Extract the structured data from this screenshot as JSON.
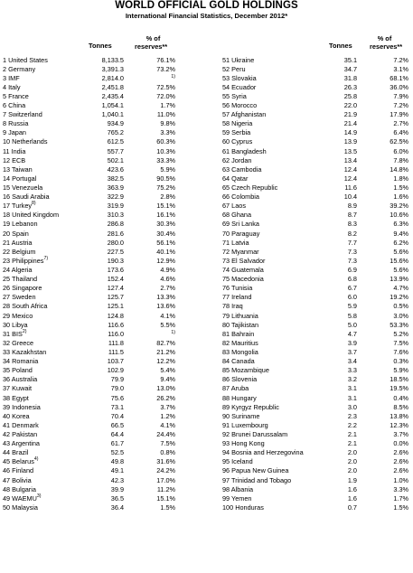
{
  "header": {
    "title": "WORLD OFFICIAL GOLD HOLDINGS",
    "subtitle": "International Financial Statistics, December 2012*",
    "tonnes_label": "Tonnes",
    "pct_label_line1": "% of",
    "pct_label_line2": "reserves**"
  },
  "left_rows": [
    {
      "rank": "1",
      "name": "United States",
      "fn": "",
      "tonnes": "8,133.5",
      "pct": "76.1%"
    },
    {
      "rank": "2",
      "name": "Germany",
      "fn": "",
      "tonnes": "3,391.3",
      "pct": "73.2%"
    },
    {
      "rank": "3",
      "name": "IMF",
      "fn": "",
      "tonnes": "2,814.0",
      "pct": "1)"
    },
    {
      "rank": "4",
      "name": "Italy",
      "fn": "",
      "tonnes": "2,451.8",
      "pct": "72.5%"
    },
    {
      "rank": "5",
      "name": "France",
      "fn": "",
      "tonnes": "2,435.4",
      "pct": "72.0%"
    },
    {
      "rank": "6",
      "name": "China",
      "fn": "",
      "tonnes": "1,054.1",
      "pct": "1.7%"
    },
    {
      "rank": "7",
      "name": "Switzerland",
      "fn": "",
      "tonnes": "1,040.1",
      "pct": "11.0%"
    },
    {
      "rank": "8",
      "name": "Russia",
      "fn": "",
      "tonnes": "934.9",
      "pct": "9.8%"
    },
    {
      "rank": "9",
      "name": "Japan",
      "fn": "",
      "tonnes": "765.2",
      "pct": "3.3%"
    },
    {
      "rank": "10",
      "name": "Netherlands",
      "fn": "",
      "tonnes": "612.5",
      "pct": "60.3%"
    },
    {
      "rank": "11",
      "name": "India",
      "fn": "",
      "tonnes": "557.7",
      "pct": "10.3%"
    },
    {
      "rank": "12",
      "name": "ECB",
      "fn": "",
      "tonnes": "502.1",
      "pct": "33.3%"
    },
    {
      "rank": "13",
      "name": "Taiwan",
      "fn": "",
      "tonnes": "423.6",
      "pct": "5.9%"
    },
    {
      "rank": "14",
      "name": "Portugal",
      "fn": "",
      "tonnes": "382.5",
      "pct": "90.5%"
    },
    {
      "rank": "15",
      "name": "Venezuela",
      "fn": "",
      "tonnes": "363.9",
      "pct": "75.2%"
    },
    {
      "rank": "16",
      "name": "Saudi Arabia",
      "fn": "",
      "tonnes": "322.9",
      "pct": "2.8%"
    },
    {
      "rank": "17",
      "name": "Turkey",
      "fn": "8)",
      "tonnes": "319.9",
      "pct": "15.1%"
    },
    {
      "rank": "18",
      "name": "United Kingdom",
      "fn": "",
      "tonnes": "310.3",
      "pct": "16.1%"
    },
    {
      "rank": "19",
      "name": "Lebanon",
      "fn": "",
      "tonnes": "286.8",
      "pct": "30.3%"
    },
    {
      "rank": "20",
      "name": "Spain",
      "fn": "",
      "tonnes": "281.6",
      "pct": "30.4%"
    },
    {
      "rank": "21",
      "name": "Austria",
      "fn": "",
      "tonnes": "280.0",
      "pct": "56.1%"
    },
    {
      "rank": "22",
      "name": "Belgium",
      "fn": "",
      "tonnes": "227.5",
      "pct": "40.1%"
    },
    {
      "rank": "23",
      "name": "Philippines",
      "fn": "7)",
      "tonnes": "190.3",
      "pct": "12.9%"
    },
    {
      "rank": "24",
      "name": "Algeria",
      "fn": "",
      "tonnes": "173.6",
      "pct": "4.9%"
    },
    {
      "rank": "25",
      "name": "Thailand",
      "fn": "",
      "tonnes": "152.4",
      "pct": "4.6%"
    },
    {
      "rank": "26",
      "name": "Singapore",
      "fn": "",
      "tonnes": "127.4",
      "pct": "2.7%"
    },
    {
      "rank": "27",
      "name": "Sweden",
      "fn": "",
      "tonnes": "125.7",
      "pct": "13.3%"
    },
    {
      "rank": "28",
      "name": "South Africa",
      "fn": "",
      "tonnes": "125.1",
      "pct": "13.6%"
    },
    {
      "rank": "29",
      "name": "Mexico",
      "fn": "",
      "tonnes": "124.8",
      "pct": "4.1%"
    },
    {
      "rank": "30",
      "name": "Libya",
      "fn": "",
      "tonnes": "116.6",
      "pct": "5.5%"
    },
    {
      "rank": "31",
      "name": "BIS",
      "fn": "2)",
      "tonnes": "116.0",
      "pct": "1)"
    },
    {
      "rank": "32",
      "name": "Greece",
      "fn": "",
      "tonnes": "111.8",
      "pct": "82.7%"
    },
    {
      "rank": "33",
      "name": "Kazakhstan",
      "fn": "",
      "tonnes": "111.5",
      "pct": "21.2%"
    },
    {
      "rank": "34",
      "name": "Romania",
      "fn": "",
      "tonnes": "103.7",
      "pct": "12.2%"
    },
    {
      "rank": "35",
      "name": "Poland",
      "fn": "",
      "tonnes": "102.9",
      "pct": "5.4%"
    },
    {
      "rank": "36",
      "name": "Australia",
      "fn": "",
      "tonnes": "79.9",
      "pct": "9.4%"
    },
    {
      "rank": "37",
      "name": "Kuwait",
      "fn": "",
      "tonnes": "79.0",
      "pct": "13.0%"
    },
    {
      "rank": "38",
      "name": "Egypt",
      "fn": "",
      "tonnes": "75.6",
      "pct": "26.2%"
    },
    {
      "rank": "39",
      "name": "Indonesia",
      "fn": "",
      "tonnes": "73.1",
      "pct": "3.7%"
    },
    {
      "rank": "40",
      "name": "Korea",
      "fn": "",
      "tonnes": "70.4",
      "pct": "1.2%"
    },
    {
      "rank": "41",
      "name": "Denmark",
      "fn": "",
      "tonnes": "66.5",
      "pct": "4.1%"
    },
    {
      "rank": "42",
      "name": "Pakistan",
      "fn": "",
      "tonnes": "64.4",
      "pct": "24.4%"
    },
    {
      "rank": "43",
      "name": "Argentina",
      "fn": "",
      "tonnes": "61.7",
      "pct": "7.5%"
    },
    {
      "rank": "44",
      "name": "Brazil",
      "fn": "",
      "tonnes": "52.5",
      "pct": "0.8%"
    },
    {
      "rank": "45",
      "name": "Belarus",
      "fn": "4)",
      "tonnes": "49.8",
      "pct": "31.6%"
    },
    {
      "rank": "46",
      "name": "Finland",
      "fn": "",
      "tonnes": "49.1",
      "pct": "24.2%"
    },
    {
      "rank": "47",
      "name": "Bolivia",
      "fn": "",
      "tonnes": "42.3",
      "pct": "17.0%"
    },
    {
      "rank": "48",
      "name": "Bulgaria",
      "fn": "",
      "tonnes": "39.9",
      "pct": "11.2%"
    },
    {
      "rank": "49",
      "name": "WAEMU",
      "fn": "3)",
      "tonnes": "36.5",
      "pct": "15.1%"
    },
    {
      "rank": "50",
      "name": "Malaysia",
      "fn": "",
      "tonnes": "36.4",
      "pct": "1.5%"
    }
  ],
  "right_rows": [
    {
      "rank": "51",
      "name": "Ukraine",
      "fn": "",
      "tonnes": "35.1",
      "pct": "7.2%"
    },
    {
      "rank": "52",
      "name": "Peru",
      "fn": "",
      "tonnes": "34.7",
      "pct": "3.1%"
    },
    {
      "rank": "53",
      "name": "Slovakia",
      "fn": "",
      "tonnes": "31.8",
      "pct": "68.1%"
    },
    {
      "rank": "54",
      "name": "Ecuador",
      "fn": "",
      "tonnes": "26.3",
      "pct": "36.0%"
    },
    {
      "rank": "55",
      "name": "Syria",
      "fn": "",
      "tonnes": "25.8",
      "pct": "7.9%"
    },
    {
      "rank": "56",
      "name": "Morocco",
      "fn": "",
      "tonnes": "22.0",
      "pct": "7.2%"
    },
    {
      "rank": "57",
      "name": "Afghanistan",
      "fn": "",
      "tonnes": "21.9",
      "pct": "17.9%"
    },
    {
      "rank": "58",
      "name": "Nigeria",
      "fn": "",
      "tonnes": "21.4",
      "pct": "2.7%"
    },
    {
      "rank": "59",
      "name": "Serbia",
      "fn": "",
      "tonnes": "14.9",
      "pct": "6.4%"
    },
    {
      "rank": "60",
      "name": "Cyprus",
      "fn": "",
      "tonnes": "13.9",
      "pct": "62.5%"
    },
    {
      "rank": "61",
      "name": "Bangladesh",
      "fn": "",
      "tonnes": "13.5",
      "pct": "6.0%"
    },
    {
      "rank": "62",
      "name": "Jordan",
      "fn": "",
      "tonnes": "13.4",
      "pct": "7.8%"
    },
    {
      "rank": "63",
      "name": "Cambodia",
      "fn": "",
      "tonnes": "12.4",
      "pct": "14.8%"
    },
    {
      "rank": "64",
      "name": "Qatar",
      "fn": "",
      "tonnes": "12.4",
      "pct": "1.8%"
    },
    {
      "rank": "65",
      "name": "Czech Republic",
      "fn": "",
      "tonnes": "11.6",
      "pct": "1.5%"
    },
    {
      "rank": "66",
      "name": "Colombia",
      "fn": "",
      "tonnes": "10.4",
      "pct": "1.6%"
    },
    {
      "rank": "67",
      "name": "Laos",
      "fn": "",
      "tonnes": "8.9",
      "pct": "39.2%"
    },
    {
      "rank": "68",
      "name": "Ghana",
      "fn": "",
      "tonnes": "8.7",
      "pct": "10.6%"
    },
    {
      "rank": "69",
      "name": "Sri Lanka",
      "fn": "",
      "tonnes": "8.3",
      "pct": "6.3%"
    },
    {
      "rank": "70",
      "name": "Paraguay",
      "fn": "",
      "tonnes": "8.2",
      "pct": "9.4%"
    },
    {
      "rank": "71",
      "name": "Latvia",
      "fn": "",
      "tonnes": "7.7",
      "pct": "6.2%"
    },
    {
      "rank": "72",
      "name": "Myanmar",
      "fn": "",
      "tonnes": "7.3",
      "pct": "5.6%"
    },
    {
      "rank": "73",
      "name": "El Salvador",
      "fn": "",
      "tonnes": "7.3",
      "pct": "15.6%"
    },
    {
      "rank": "74",
      "name": "Guatemala",
      "fn": "",
      "tonnes": "6.9",
      "pct": "5.6%"
    },
    {
      "rank": "75",
      "name": "Macedonia",
      "fn": "",
      "tonnes": "6.8",
      "pct": "13.9%"
    },
    {
      "rank": "76",
      "name": "Tunisia",
      "fn": "",
      "tonnes": "6.7",
      "pct": "4.7%"
    },
    {
      "rank": "77",
      "name": "Ireland",
      "fn": "",
      "tonnes": "6.0",
      "pct": "19.2%"
    },
    {
      "rank": "78",
      "name": "Iraq",
      "fn": "",
      "tonnes": "5.9",
      "pct": "0.5%"
    },
    {
      "rank": "79",
      "name": "Lithuania",
      "fn": "",
      "tonnes": "5.8",
      "pct": "3.0%"
    },
    {
      "rank": "80",
      "name": "Tajikistan",
      "fn": "",
      "tonnes": "5.0",
      "pct": "53.3%"
    },
    {
      "rank": "81",
      "name": "Bahrain",
      "fn": "",
      "tonnes": "4.7",
      "pct": "5.2%"
    },
    {
      "rank": "82",
      "name": "Mauritius",
      "fn": "",
      "tonnes": "3.9",
      "pct": "7.5%"
    },
    {
      "rank": "83",
      "name": "Mongolia",
      "fn": "",
      "tonnes": "3.7",
      "pct": "7.6%"
    },
    {
      "rank": "84",
      "name": "Canada",
      "fn": "",
      "tonnes": "3.4",
      "pct": "0.3%"
    },
    {
      "rank": "85",
      "name": "Mozambique",
      "fn": "",
      "tonnes": "3.3",
      "pct": "5.9%"
    },
    {
      "rank": "86",
      "name": "Slovenia",
      "fn": "",
      "tonnes": "3.2",
      "pct": "18.5%"
    },
    {
      "rank": "87",
      "name": "Aruba",
      "fn": "",
      "tonnes": "3.1",
      "pct": "19.5%"
    },
    {
      "rank": "88",
      "name": "Hungary",
      "fn": "",
      "tonnes": "3.1",
      "pct": "0.4%"
    },
    {
      "rank": "89",
      "name": "Kyrgyz Republic",
      "fn": "",
      "tonnes": "3.0",
      "pct": "8.5%"
    },
    {
      "rank": "90",
      "name": "Suriname",
      "fn": "",
      "tonnes": "2.3",
      "pct": "13.8%"
    },
    {
      "rank": "91",
      "name": "Luxembourg",
      "fn": "",
      "tonnes": "2.2",
      "pct": "12.3%"
    },
    {
      "rank": "92",
      "name": "Brunei Darussalam",
      "fn": "",
      "tonnes": "2.1",
      "pct": "3.7%"
    },
    {
      "rank": "93",
      "name": "Hong Kong",
      "fn": "",
      "tonnes": "2.1",
      "pct": "0.0%"
    },
    {
      "rank": "94",
      "name": "Bosnia and Herzegovina",
      "fn": "",
      "tonnes": "2.0",
      "pct": "2.6%"
    },
    {
      "rank": "95",
      "name": "Iceland",
      "fn": "",
      "tonnes": "2.0",
      "pct": "2.6%"
    },
    {
      "rank": "96",
      "name": "Papua New Guinea",
      "fn": "",
      "tonnes": "2.0",
      "pct": "2.6%"
    },
    {
      "rank": "97",
      "name": "Trinidad and Tobago",
      "fn": "",
      "tonnes": "1.9",
      "pct": "1.0%"
    },
    {
      "rank": "98",
      "name": "Albania",
      "fn": "",
      "tonnes": "1.6",
      "pct": "3.3%"
    },
    {
      "rank": "99",
      "name": "Yemen",
      "fn": "",
      "tonnes": "1.6",
      "pct": "1.7%"
    },
    {
      "rank": "100",
      "name": "Honduras",
      "fn": "",
      "tonnes": "0.7",
      "pct": "1.5%"
    }
  ]
}
